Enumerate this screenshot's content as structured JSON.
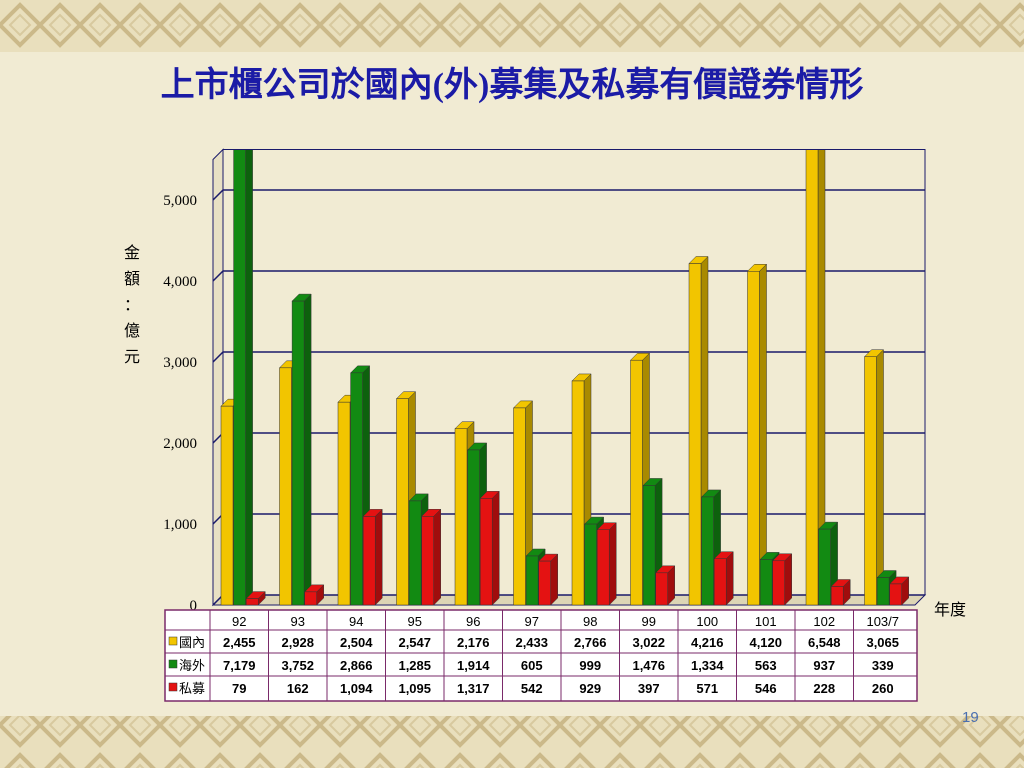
{
  "chart_data": {
    "type": "bar3d",
    "title": "上市櫃公司於國內(外)募集及私募有價證券情形",
    "y_label": "金額：億元",
    "x_label": "年度",
    "page_number": "19",
    "categories": [
      "92",
      "93",
      "94",
      "95",
      "96",
      "97",
      "98",
      "99",
      "100",
      "101",
      "102",
      "103/7"
    ],
    "series": [
      {
        "name": "國內",
        "color": "#f2c500",
        "values": [
          2455,
          2928,
          2504,
          2547,
          2176,
          2433,
          2766,
          3022,
          4216,
          4120,
          6548,
          3065
        ],
        "value_labels": [
          "2,455",
          "2,928",
          "2,504",
          "2,547",
          "2,176",
          "2,433",
          "2,766",
          "3,022",
          "4,216",
          "4,120",
          "6,548",
          "3,065"
        ]
      },
      {
        "name": "海外",
        "color": "#128a12",
        "values": [
          7179,
          3752,
          2866,
          1285,
          1914,
          605,
          999,
          1476,
          1334,
          563,
          937,
          339
        ],
        "value_labels": [
          "7,179",
          "3,752",
          "2,866",
          "1,285",
          "1,914",
          "605",
          "999",
          "1,476",
          "1,334",
          "563",
          "937",
          "339"
        ]
      },
      {
        "name": "私募",
        "color": "#e41212",
        "values": [
          79,
          162,
          1094,
          1095,
          1317,
          542,
          929,
          397,
          571,
          546,
          228,
          260
        ],
        "value_labels": [
          "79",
          "162",
          "1,094",
          "1,095",
          "1,317",
          "542",
          "929",
          "397",
          "571",
          "546",
          "228",
          "260"
        ]
      }
    ],
    "ylim": [
      0,
      5500
    ],
    "yticks": [
      0,
      {
        "value": 1000,
        "label": "1,000"
      },
      {
        "value": 2000,
        "label": "2,000"
      },
      {
        "value": 3000,
        "label": "3,000"
      },
      {
        "value": 4000,
        "label": "4,000"
      },
      {
        "value": 5000,
        "label": "5,000"
      }
    ],
    "grid": true
  }
}
